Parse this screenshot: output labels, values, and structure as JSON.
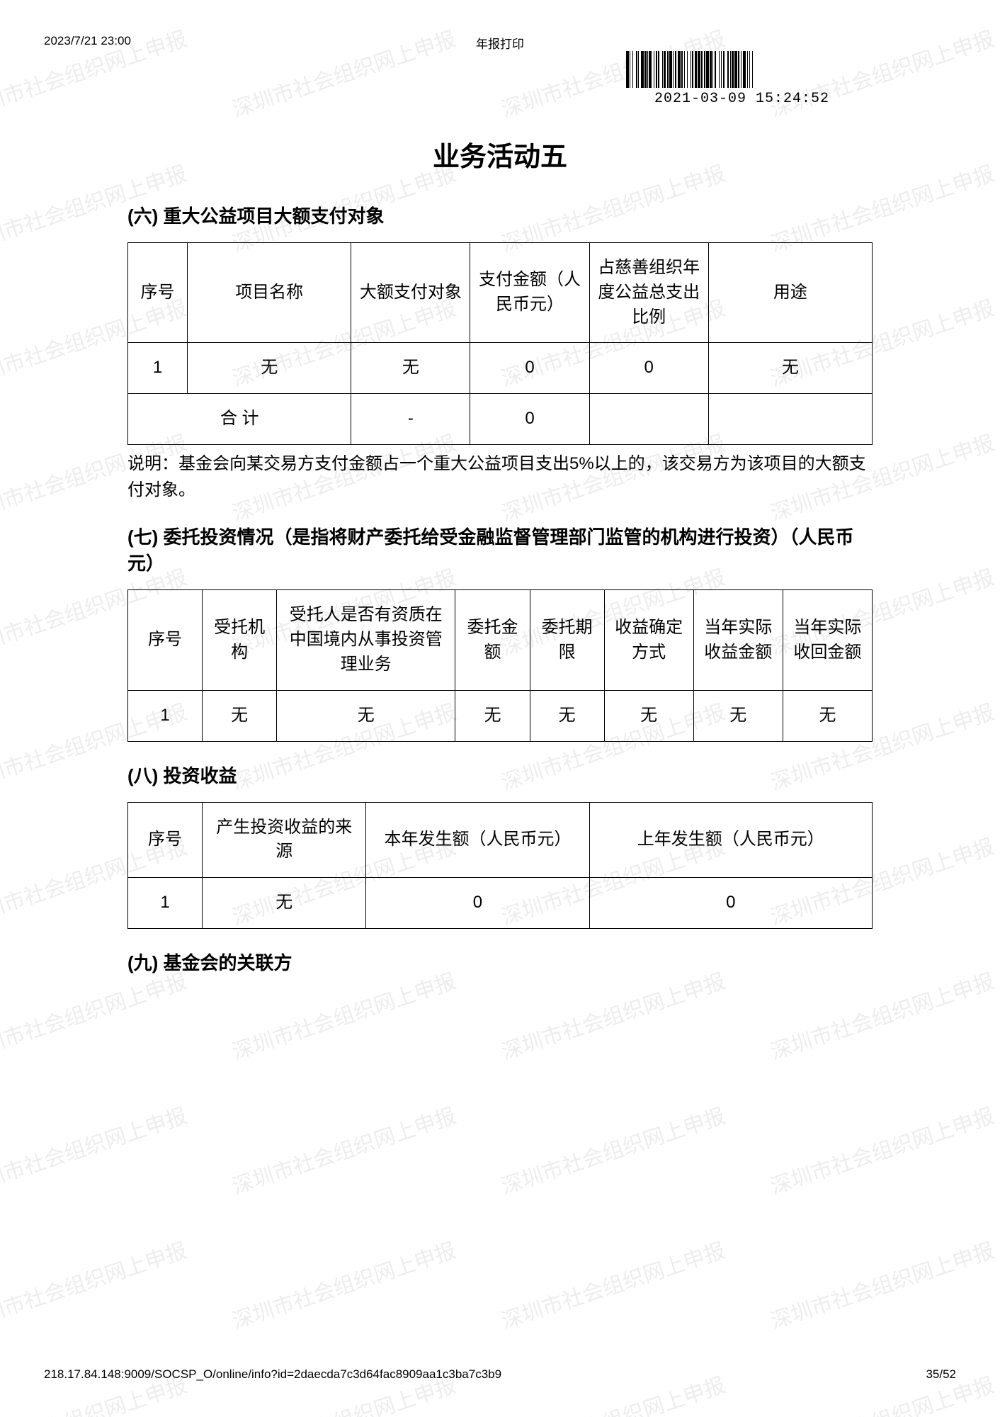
{
  "header": {
    "datetime_left": "2023/7/21 23:00",
    "center_title": "年报打印",
    "barcode_timestamp": "2021-03-09 15:24:52"
  },
  "watermark_text": "深圳市社会组织网上申报",
  "main_title": "业务活动五",
  "section6": {
    "title": "(六) 重大公益项目大额支付对象",
    "columns": [
      "序号",
      "项目名称",
      "大额支付对象",
      "支付金额（人民币元）",
      "占慈善组织年度公益总支出比例",
      "用途"
    ],
    "col_widths_pct": [
      8,
      22,
      16,
      16,
      16,
      22
    ],
    "rows": [
      [
        "1",
        "无",
        "无",
        "0",
        "0",
        "无"
      ]
    ],
    "total_row": [
      "合 计",
      "-",
      "0",
      "",
      ""
    ],
    "note": "说明：基金会向某交易方支付金额占一个重大公益项目支出5%以上的，该交易方为该项目的大额支付对象。"
  },
  "section7": {
    "title": "(七) 委托投资情况（是指将财产委托给受金融监督管理部门监管的机构进行投资）（人民币元）",
    "columns": [
      "序号",
      "受托机构",
      "受托人是否有资质在中国境内从事投资管理业务",
      "委托金额",
      "委托期限",
      "收益确定方式",
      "当年实际收益金额",
      "当年实际收回金额"
    ],
    "col_widths_pct": [
      10,
      10,
      24,
      10,
      10,
      12,
      12,
      12
    ],
    "rows": [
      [
        "1",
        "无",
        "无",
        "无",
        "无",
        "无",
        "无",
        "无"
      ]
    ]
  },
  "section8": {
    "title": "(八) 投资收益",
    "columns": [
      "序号",
      "产生投资收益的来源",
      "本年发生额（人民币元）",
      "上年发生额（人民币元）"
    ],
    "col_widths_pct": [
      10,
      22,
      30,
      38
    ],
    "rows": [
      [
        "1",
        "无",
        "0",
        "0"
      ]
    ]
  },
  "section9": {
    "title": "(九) 基金会的关联方"
  },
  "footer": {
    "url": "218.17.84.148:9009/SOCSP_O/online/info?id=2daecda7c3d64fac8909aa1c3ba7c3b9",
    "page": "35/52"
  },
  "colors": {
    "text": "#000000",
    "border": "#000000",
    "background": "#ffffff",
    "watermark": "rgba(0,0,0,0.07)"
  }
}
